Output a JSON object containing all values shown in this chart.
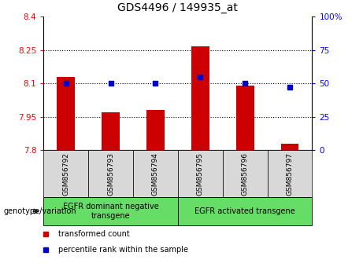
{
  "title": "GDS4496 / 149935_at",
  "samples": [
    "GSM856792",
    "GSM856793",
    "GSM856794",
    "GSM856795",
    "GSM856796",
    "GSM856797"
  ],
  "bar_values": [
    8.13,
    7.97,
    7.98,
    8.265,
    8.09,
    7.83
  ],
  "bar_base": 7.8,
  "percentile_values": [
    50,
    50,
    50,
    55,
    50,
    47
  ],
  "ylim_left": [
    7.8,
    8.4
  ],
  "ylim_right": [
    0,
    100
  ],
  "yticks_left": [
    7.8,
    7.95,
    8.1,
    8.25,
    8.4
  ],
  "yticks_left_labels": [
    "7.8",
    "7.95",
    "8.1",
    "8.25",
    "8.4"
  ],
  "yticks_right": [
    0,
    25,
    50,
    75,
    100
  ],
  "yticks_right_labels": [
    "0",
    "25",
    "50",
    "75",
    "100%"
  ],
  "hlines": [
    7.95,
    8.1,
    8.25
  ],
  "bar_color": "#cc0000",
  "dot_color": "#0000cc",
  "sample_box_color": "#d8d8d8",
  "green_color": "#66dd66",
  "group1_label": "EGFR dominant negative\ntransgene",
  "group2_label": "EGFR activated transgene",
  "legend_bar_label": "transformed count",
  "legend_dot_label": "percentile rank within the sample",
  "genotype_label": "genotype/variation",
  "bar_width": 0.4,
  "title_fontsize": 10,
  "tick_fontsize": 7.5,
  "label_fontsize": 7,
  "sample_fontsize": 6.5
}
